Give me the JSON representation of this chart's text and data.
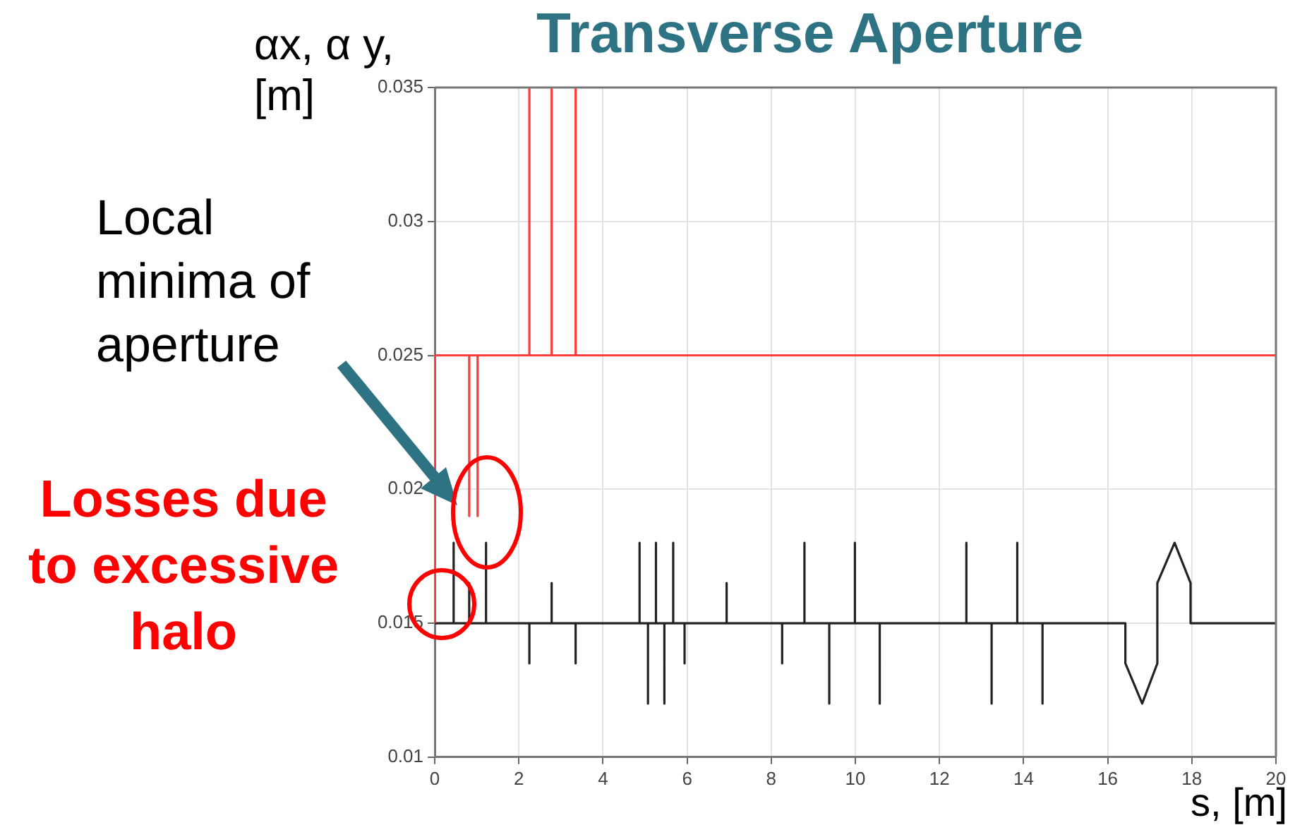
{
  "chart_data": {
    "type": "line",
    "title": "Transverse Aperture",
    "xlabel": "s, [m]",
    "ylabel": "αx, α y, [m]",
    "annotations": [
      "Local minima of aperture",
      "Losses due to excessive halo"
    ],
    "xlim": [
      0,
      20
    ],
    "xticks": [
      0,
      2,
      4,
      6,
      8,
      10,
      12,
      14,
      16,
      18,
      20
    ],
    "ylim": [
      0.01,
      0.035
    ],
    "yticks": [
      0.01,
      0.015,
      0.02,
      0.025,
      0.03,
      0.035
    ],
    "grid": true,
    "legend": false,
    "marker": "none",
    "line_style": "solid",
    "series": [
      {
        "color": "#ff3b3b",
        "x": [
          0,
          0,
          0.82,
          0.82,
          0.82,
          1.02,
          1.02,
          1.02,
          2.25,
          2.25,
          2.25,
          2.78,
          2.78,
          2.78,
          3.35,
          3.35,
          3.35,
          20
        ],
        "values": [
          0.015,
          0.025,
          0.025,
          0.019,
          0.025,
          0.025,
          0.019,
          0.025,
          0.025,
          0.035,
          0.025,
          0.025,
          0.035,
          0.025,
          0.025,
          0.035,
          0.025,
          0.025
        ]
      },
      {
        "color": "#222222",
        "x": [
          0,
          0.45,
          0.45,
          0.45,
          0.82,
          0.82,
          0.82,
          1.22,
          1.22,
          1.22,
          2.25,
          2.25,
          2.25,
          2.78,
          2.78,
          2.78,
          3.35,
          3.35,
          3.35,
          4.87,
          4.87,
          4.87,
          5.07,
          5.07,
          5.07,
          5.26,
          5.26,
          5.26,
          5.46,
          5.46,
          5.46,
          5.67,
          5.67,
          5.67,
          5.94,
          5.94,
          5.94,
          6.94,
          6.94,
          6.94,
          8.26,
          8.26,
          8.26,
          8.79,
          8.79,
          8.79,
          9.38,
          9.38,
          9.38,
          9.99,
          9.99,
          9.99,
          10.58,
          10.58,
          10.58,
          12.64,
          12.64,
          12.64,
          13.24,
          13.24,
          13.24,
          13.85,
          13.85,
          13.85,
          14.45,
          14.45,
          14.45,
          16.42,
          16.42,
          16.82,
          17.18,
          17.18,
          17.59,
          17.97,
          17.97,
          20
        ],
        "values": [
          0.015,
          0.015,
          0.018,
          0.015,
          0.015,
          0.0165,
          0.015,
          0.015,
          0.018,
          0.015,
          0.015,
          0.0135,
          0.015,
          0.015,
          0.0165,
          0.015,
          0.015,
          0.0135,
          0.015,
          0.015,
          0.018,
          0.015,
          0.015,
          0.012,
          0.015,
          0.015,
          0.018,
          0.015,
          0.015,
          0.012,
          0.015,
          0.015,
          0.018,
          0.015,
          0.015,
          0.0135,
          0.015,
          0.015,
          0.0165,
          0.015,
          0.015,
          0.0135,
          0.015,
          0.015,
          0.018,
          0.015,
          0.015,
          0.012,
          0.015,
          0.015,
          0.018,
          0.015,
          0.015,
          0.012,
          0.015,
          0.015,
          0.018,
          0.015,
          0.015,
          0.012,
          0.015,
          0.015,
          0.018,
          0.015,
          0.015,
          0.012,
          0.015,
          0.015,
          0.0135,
          0.012,
          0.0135,
          0.0165,
          0.018,
          0.0165,
          0.015,
          0.015
        ]
      }
    ]
  }
}
